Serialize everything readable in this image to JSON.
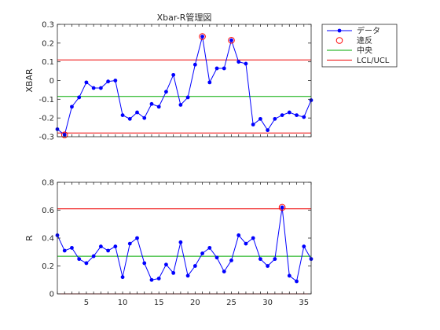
{
  "chart_data": [
    {
      "type": "line",
      "title": "Xbar-R管理図",
      "xlabel": "",
      "ylabel": "XBAR",
      "xlim": [
        1,
        36
      ],
      "ylim": [
        -0.3,
        0.3
      ],
      "x_ticks": [],
      "y_ticks": [
        -0.3,
        -0.2,
        -0.1,
        0,
        0.1,
        0.2,
        0.3
      ],
      "y_tick_labels": [
        "-0.3",
        "-0.2",
        "-0.1",
        "0",
        "0.1",
        "0.2",
        "0.3"
      ],
      "grid": false,
      "x": [
        1,
        2,
        3,
        4,
        5,
        6,
        7,
        8,
        9,
        10,
        11,
        12,
        13,
        14,
        15,
        16,
        17,
        18,
        19,
        20,
        21,
        22,
        23,
        24,
        25,
        26,
        27,
        28,
        29,
        30,
        31,
        32,
        33,
        34,
        35,
        36
      ],
      "series": [
        {
          "name": "データ",
          "color": "#0000ff",
          "values": [
            -0.26,
            -0.29,
            -0.14,
            -0.09,
            -0.01,
            -0.04,
            -0.04,
            -0.005,
            0.0,
            -0.185,
            -0.205,
            -0.17,
            -0.2,
            -0.125,
            -0.14,
            -0.06,
            0.03,
            -0.13,
            -0.09,
            0.085,
            0.235,
            -0.01,
            0.065,
            0.065,
            0.215,
            0.1,
            0.09,
            -0.235,
            -0.205,
            -0.265,
            -0.205,
            -0.185,
            -0.17,
            -0.185,
            -0.195,
            -0.105
          ]
        }
      ],
      "violations": [
        {
          "name": "違反",
          "color": "#ff0000",
          "x": [
            2,
            21,
            25
          ],
          "values": [
            -0.29,
            0.235,
            0.215
          ]
        }
      ],
      "reference_lines": [
        {
          "name": "中央",
          "color": "#00aa00",
          "value": -0.085
        },
        {
          "name": "LCL/UCL",
          "color": "#ee0000",
          "value": 0.11
        },
        {
          "name": "LCL/UCL",
          "color": "#ee0000",
          "value": -0.28
        }
      ],
      "legend": {
        "placement": "outside-top-right",
        "entries": [
          {
            "label": "データ",
            "kind": "line-marker",
            "color": "#0000ff"
          },
          {
            "label": "違反",
            "kind": "circle",
            "color": "#ff0000"
          },
          {
            "label": "中央",
            "kind": "line",
            "color": "#00aa00"
          },
          {
            "label": "LCL/UCL",
            "kind": "line",
            "color": "#ee0000"
          }
        ]
      }
    },
    {
      "type": "line",
      "title": "",
      "xlabel": "",
      "ylabel": "R",
      "xlim": [
        1,
        36
      ],
      "ylim": [
        0,
        0.8
      ],
      "x_ticks": [
        5,
        10,
        15,
        20,
        25,
        30,
        35
      ],
      "y_ticks": [
        0,
        0.2,
        0.4,
        0.6,
        0.8
      ],
      "y_tick_labels": [
        "0",
        "0.2",
        "0.4",
        "0.6",
        "0.8"
      ],
      "grid": false,
      "x": [
        1,
        2,
        3,
        4,
        5,
        6,
        7,
        8,
        9,
        10,
        11,
        12,
        13,
        14,
        15,
        16,
        17,
        18,
        19,
        20,
        21,
        22,
        23,
        24,
        25,
        26,
        27,
        28,
        29,
        30,
        31,
        32,
        33,
        34,
        35,
        36
      ],
      "series": [
        {
          "name": "",
          "color": "#0000ff",
          "values": [
            0.42,
            0.31,
            0.33,
            0.25,
            0.22,
            0.27,
            0.34,
            0.31,
            0.34,
            0.12,
            0.36,
            0.4,
            0.22,
            0.1,
            0.11,
            0.21,
            0.15,
            0.37,
            0.13,
            0.2,
            0.29,
            0.33,
            0.26,
            0.16,
            0.24,
            0.42,
            0.36,
            0.4,
            0.25,
            0.2,
            0.25,
            0.62,
            0.13,
            0.09,
            0.34,
            0.25
          ]
        }
      ],
      "violations": [
        {
          "name": "",
          "color": "#ff0000",
          "x": [
            32
          ],
          "values": [
            0.62
          ]
        }
      ],
      "reference_lines": [
        {
          "name": "",
          "color": "#00aa00",
          "value": 0.27
        },
        {
          "name": "",
          "color": "#ee0000",
          "value": 0.61
        },
        {
          "name": "",
          "color": "#ee0000",
          "value": 0.0
        }
      ]
    }
  ]
}
